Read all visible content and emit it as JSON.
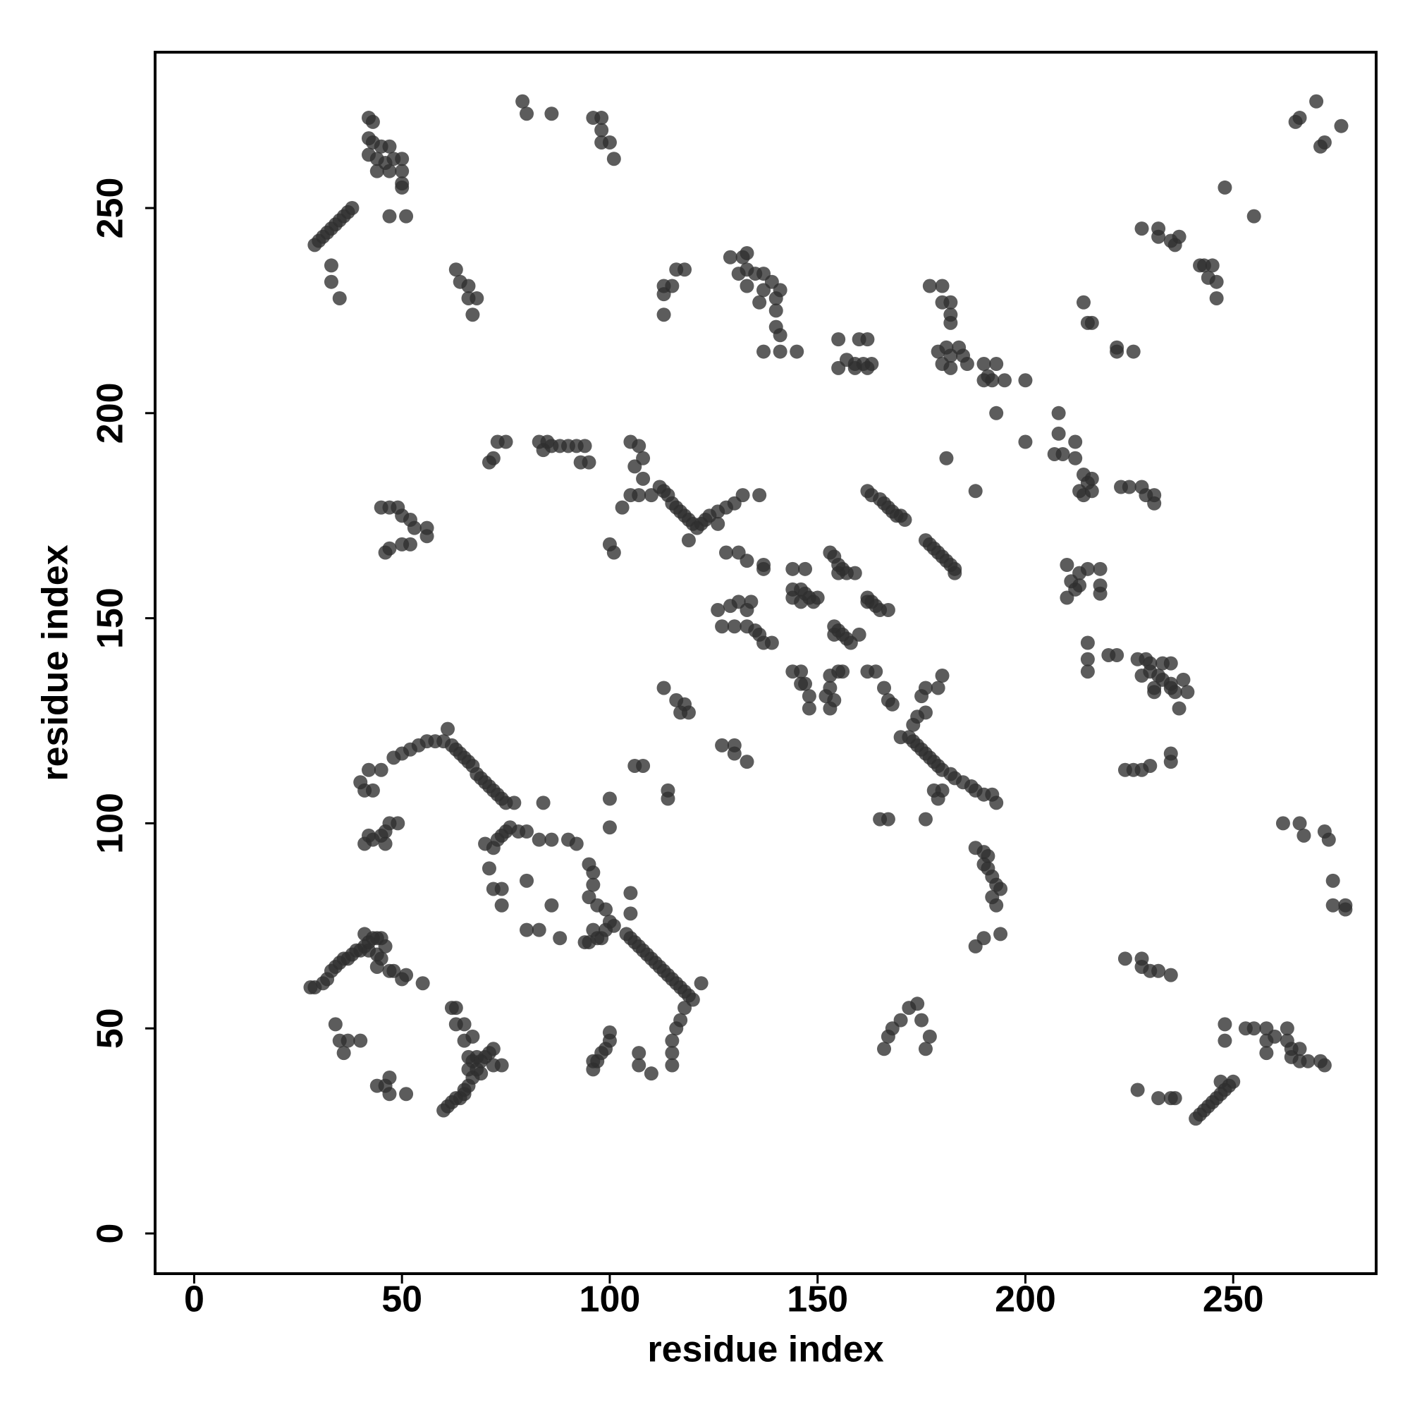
{
  "chart_data": {
    "type": "scatter",
    "x_label": "residue index",
    "y_label": "residue index",
    "xlim": [
      -9.4,
      284.4
    ],
    "ylim": [
      -9.8,
      288
    ],
    "xticks": [
      0,
      50,
      100,
      150,
      200,
      250
    ],
    "yticks": [
      0,
      50,
      100,
      150,
      200,
      250
    ],
    "opacity": 0.78,
    "series": [
      {
        "color": "#2e2e2e",
        "x": [
          29,
          30,
          31,
          32,
          33,
          34,
          35,
          36,
          37,
          38,
          33,
          33,
          35,
          42,
          43,
          42,
          43,
          45,
          47,
          42,
          44,
          46,
          48,
          50,
          44,
          47,
          50,
          50,
          50,
          51,
          47,
          79,
          80,
          86,
          96,
          98,
          98,
          100,
          98,
          101,
          270,
          266,
          265,
          272,
          271,
          276,
          248,
          255,
          228,
          232,
          232,
          235,
          236,
          237,
          242,
          243,
          245,
          244,
          246,
          246,
          63,
          64,
          66,
          66,
          68,
          67,
          113,
          113,
          115,
          113,
          116,
          118,
          129,
          132,
          133,
          131,
          133,
          135,
          137,
          139,
          141,
          140,
          133,
          137,
          136,
          140,
          140,
          141,
          141,
          137,
          145,
          155,
          160,
          162,
          157,
          159,
          161,
          163,
          155,
          159,
          162,
          177,
          180,
          180,
          182,
          182,
          182,
          179,
          181,
          182,
          184,
          180,
          182,
          185,
          186,
          190,
          193,
          190,
          191,
          192,
          195,
          200,
          193,
          200,
          214,
          215,
          216,
          222,
          226,
          222,
          208,
          208,
          207,
          209,
          212,
          212,
          214,
          215,
          216,
          214,
          213,
          216,
          223,
          225,
          228,
          229,
          231,
          231,
          188,
          181,
          210,
          213,
          211,
          213,
          215,
          218,
          210,
          212,
          218,
          218,
          215,
          215,
          215,
          220,
          222,
          227,
          229,
          230,
          233,
          235,
          228,
          230,
          232,
          233,
          235,
          235,
          238,
          239,
          236,
          237,
          231,
          231,
          224,
          226,
          228,
          230,
          235,
          235,
          71,
          72,
          73,
          75,
          83,
          85,
          86,
          88,
          90,
          92,
          94,
          93,
          95,
          84,
          105,
          107,
          108,
          106,
          108,
          105,
          107,
          110,
          112,
          113,
          114,
          115,
          116,
          117,
          118,
          119,
          120,
          121,
          122,
          123,
          124,
          126,
          128,
          130,
          132,
          136,
          126,
          119,
          103,
          100,
          101,
          45,
          47,
          49,
          50,
          52,
          53,
          56,
          56,
          52,
          50,
          47,
          46,
          128,
          131,
          133,
          137,
          137,
          144,
          147,
          126,
          129,
          131,
          134,
          133,
          127,
          130,
          133,
          135,
          136,
          137,
          139,
          144,
          146,
          147,
          148,
          150,
          149,
          146,
          144,
          153,
          154,
          155,
          156,
          157,
          155,
          159,
          154,
          155,
          156,
          157,
          158,
          154,
          160,
          162,
          163,
          164,
          165,
          167,
          162,
          144,
          146,
          146,
          148,
          148,
          147,
          152,
          153,
          154,
          153,
          153,
          155,
          156,
          162,
          164,
          166,
          167,
          168,
          175,
          176,
          179,
          180,
          162,
          163,
          165,
          166,
          167,
          168,
          169,
          170,
          171,
          176,
          177,
          178,
          179,
          180,
          181,
          182,
          183,
          183,
          170,
          172,
          173,
          174,
          175,
          176,
          177,
          178,
          179,
          180,
          182,
          183,
          185,
          187,
          178,
          180,
          179,
          188,
          190,
          192,
          193,
          173,
          174,
          176,
          165,
          167,
          176,
          188,
          190,
          191,
          190,
          191,
          192,
          193,
          194,
          192,
          193,
          188,
          190,
          194,
          166,
          167,
          168,
          170,
          172,
          174,
          175,
          177,
          176,
          40,
          42,
          43,
          45,
          41,
          48,
          50,
          52,
          54,
          56,
          58,
          60,
          61,
          62,
          63,
          64,
          65,
          66,
          67,
          68,
          69,
          70,
          71,
          72,
          73,
          74,
          75,
          77,
          84,
          41,
          43,
          45,
          46,
          47,
          49,
          42,
          46,
          70,
          72,
          73,
          74,
          75,
          76,
          78,
          80,
          83,
          86,
          90,
          92,
          71,
          72,
          74,
          74,
          80,
          86,
          80,
          83,
          88,
          95,
          96,
          96,
          95,
          97,
          99,
          100,
          101,
          96,
          97,
          98,
          95,
          94,
          99,
          100,
          100,
          108,
          106,
          105,
          105,
          114,
          114,
          104,
          105,
          106,
          107,
          108,
          109,
          110,
          111,
          112,
          113,
          114,
          115,
          116,
          117,
          118,
          119,
          120,
          122,
          118,
          117,
          116,
          115,
          113,
          116,
          117,
          119,
          118,
          127,
          130,
          130,
          133,
          28,
          29,
          31,
          32,
          33,
          34,
          35,
          36,
          37,
          38,
          39,
          40,
          41,
          42,
          43,
          44,
          45,
          46,
          45,
          44,
          47,
          48,
          50,
          51,
          55,
          44,
          42,
          41,
          34,
          35,
          37,
          36,
          40,
          44,
          46,
          47,
          47,
          51,
          62,
          63,
          63,
          65,
          65,
          67,
          66,
          67,
          68,
          69,
          70,
          71,
          72,
          72,
          74,
          66,
          67,
          66,
          65,
          64,
          63,
          62,
          61,
          60,
          65,
          68,
          69,
          96,
          97,
          98,
          99,
          100,
          100,
          96,
          107,
          107,
          110,
          115,
          115,
          224,
          228,
          228,
          230,
          232,
          235,
          227,
          232,
          235,
          236,
          241,
          242,
          243,
          244,
          245,
          246,
          247,
          248,
          249,
          250,
          247,
          248,
          248,
          253,
          255,
          258,
          258,
          258,
          260,
          263,
          263,
          264,
          266,
          266,
          264,
          268,
          262,
          266,
          267,
          272,
          273,
          274,
          274,
          277,
          277,
          271,
          272
        ],
        "y": [
          241,
          242,
          243,
          244,
          245,
          246,
          247,
          248,
          249,
          250,
          236,
          232,
          228,
          272,
          271,
          267,
          266,
          265,
          265,
          263,
          262,
          261,
          262,
          262,
          259,
          259,
          259,
          256,
          255,
          248,
          248,
          276,
          273,
          273,
          272,
          272,
          269,
          266,
          266,
          262,
          276,
          272,
          271,
          266,
          265,
          270,
          255,
          248,
          245,
          245,
          243,
          242,
          241,
          243,
          236,
          236,
          236,
          233,
          232,
          228,
          235,
          232,
          231,
          228,
          228,
          224,
          229,
          231,
          231,
          224,
          235,
          235,
          238,
          238,
          239,
          234,
          235,
          234,
          234,
          232,
          230,
          228,
          231,
          230,
          227,
          225,
          221,
          219,
          215,
          215,
          215,
          218,
          218,
          218,
          213,
          212,
          212,
          212,
          211,
          211,
          211,
          231,
          231,
          227,
          227,
          224,
          222,
          215,
          216,
          214,
          216,
          212,
          211,
          214,
          212,
          212,
          212,
          208,
          209,
          208,
          208,
          208,
          200,
          193,
          227,
          222,
          222,
          216,
          215,
          215,
          200,
          195,
          190,
          190,
          193,
          189,
          185,
          183,
          181,
          180,
          181,
          184,
          182,
          182,
          182,
          180,
          180,
          178,
          181,
          189,
          163,
          161,
          159,
          158,
          162,
          162,
          155,
          157,
          158,
          156,
          144,
          140,
          137,
          141,
          141,
          140,
          140,
          139,
          139,
          139,
          136,
          137,
          136,
          135,
          134,
          133,
          135,
          132,
          132,
          128,
          133,
          132,
          113,
          113,
          113,
          114,
          117,
          115,
          188,
          189,
          193,
          193,
          193,
          193,
          192,
          192,
          192,
          192,
          192,
          188,
          188,
          191,
          193,
          192,
          189,
          187,
          184,
          180,
          180,
          180,
          182,
          181,
          180,
          178,
          177,
          176,
          175,
          174,
          173,
          172,
          173,
          174,
          175,
          176,
          177,
          178,
          180,
          180,
          173,
          169,
          177,
          168,
          166,
          177,
          177,
          177,
          175,
          174,
          172,
          172,
          170,
          168,
          168,
          167,
          166,
          166,
          166,
          164,
          163,
          162,
          162,
          162,
          152,
          153,
          154,
          154,
          152,
          148,
          148,
          148,
          147,
          146,
          144,
          144,
          157,
          157,
          156,
          155,
          155,
          154,
          154,
          155,
          166,
          165,
          163,
          162,
          161,
          161,
          161,
          148,
          147,
          146,
          145,
          144,
          146,
          146,
          155,
          154,
          153,
          152,
          152,
          154,
          137,
          137,
          134,
          131,
          128,
          134,
          131,
          133,
          130,
          128,
          136,
          137,
          137,
          137,
          137,
          133,
          130,
          129,
          131,
          133,
          133,
          136,
          181,
          180,
          179,
          178,
          177,
          176,
          175,
          175,
          174,
          169,
          168,
          167,
          166,
          165,
          164,
          163,
          162,
          161,
          121,
          121,
          120,
          119,
          118,
          117,
          116,
          115,
          114,
          113,
          112,
          111,
          110,
          109,
          108,
          108,
          106,
          108,
          107,
          107,
          105,
          124,
          126,
          127,
          101,
          101,
          101,
          94,
          93,
          92,
          90,
          89,
          87,
          85,
          84,
          82,
          80,
          70,
          72,
          73,
          45,
          48,
          50,
          52,
          55,
          56,
          52,
          48,
          45,
          110,
          113,
          108,
          113,
          108,
          116,
          117,
          118,
          119,
          120,
          120,
          120,
          123,
          119,
          118,
          117,
          116,
          115,
          114,
          112,
          111,
          110,
          109,
          108,
          107,
          106,
          105,
          105,
          105,
          95,
          96,
          97,
          98,
          100,
          100,
          97,
          95,
          95,
          94,
          96,
          97,
          98,
          99,
          98,
          98,
          96,
          96,
          96,
          95,
          89,
          84,
          84,
          80,
          86,
          80,
          74,
          74,
          72,
          90,
          88,
          85,
          82,
          80,
          79,
          76,
          75,
          74,
          72,
          72,
          71,
          71,
          74,
          106,
          99,
          114,
          114,
          83,
          78,
          108,
          106,
          73,
          72,
          71,
          70,
          69,
          68,
          67,
          66,
          65,
          64,
          63,
          62,
          61,
          60,
          59,
          58,
          57,
          61,
          55,
          52,
          50,
          47,
          133,
          130,
          127,
          127,
          129,
          119,
          119,
          117,
          115,
          60,
          60,
          61,
          62,
          64,
          65,
          66,
          67,
          67,
          68,
          69,
          69,
          70,
          71,
          72,
          72,
          72,
          70,
          67,
          65,
          64,
          64,
          62,
          63,
          61,
          68,
          69,
          73,
          51,
          47,
          47,
          44,
          47,
          36,
          36,
          38,
          34,
          34,
          55,
          55,
          51,
          51,
          47,
          48,
          43,
          42,
          43,
          42,
          43,
          44,
          45,
          41,
          41,
          40,
          38,
          36,
          34,
          33,
          33,
          32,
          31,
          30,
          35,
          40,
          39,
          40,
          42,
          44,
          45,
          47,
          49,
          42,
          41,
          44,
          39,
          41,
          44,
          67,
          67,
          65,
          64,
          64,
          63,
          35,
          33,
          33,
          33,
          28,
          29,
          30,
          31,
          32,
          33,
          34,
          35,
          36,
          37,
          37,
          47,
          51,
          50,
          50,
          50,
          47,
          44,
          48,
          50,
          47,
          45,
          45,
          42,
          43,
          42,
          100,
          100,
          97,
          98,
          96,
          86,
          80,
          80,
          79,
          42,
          41
        ]
      }
    ]
  }
}
